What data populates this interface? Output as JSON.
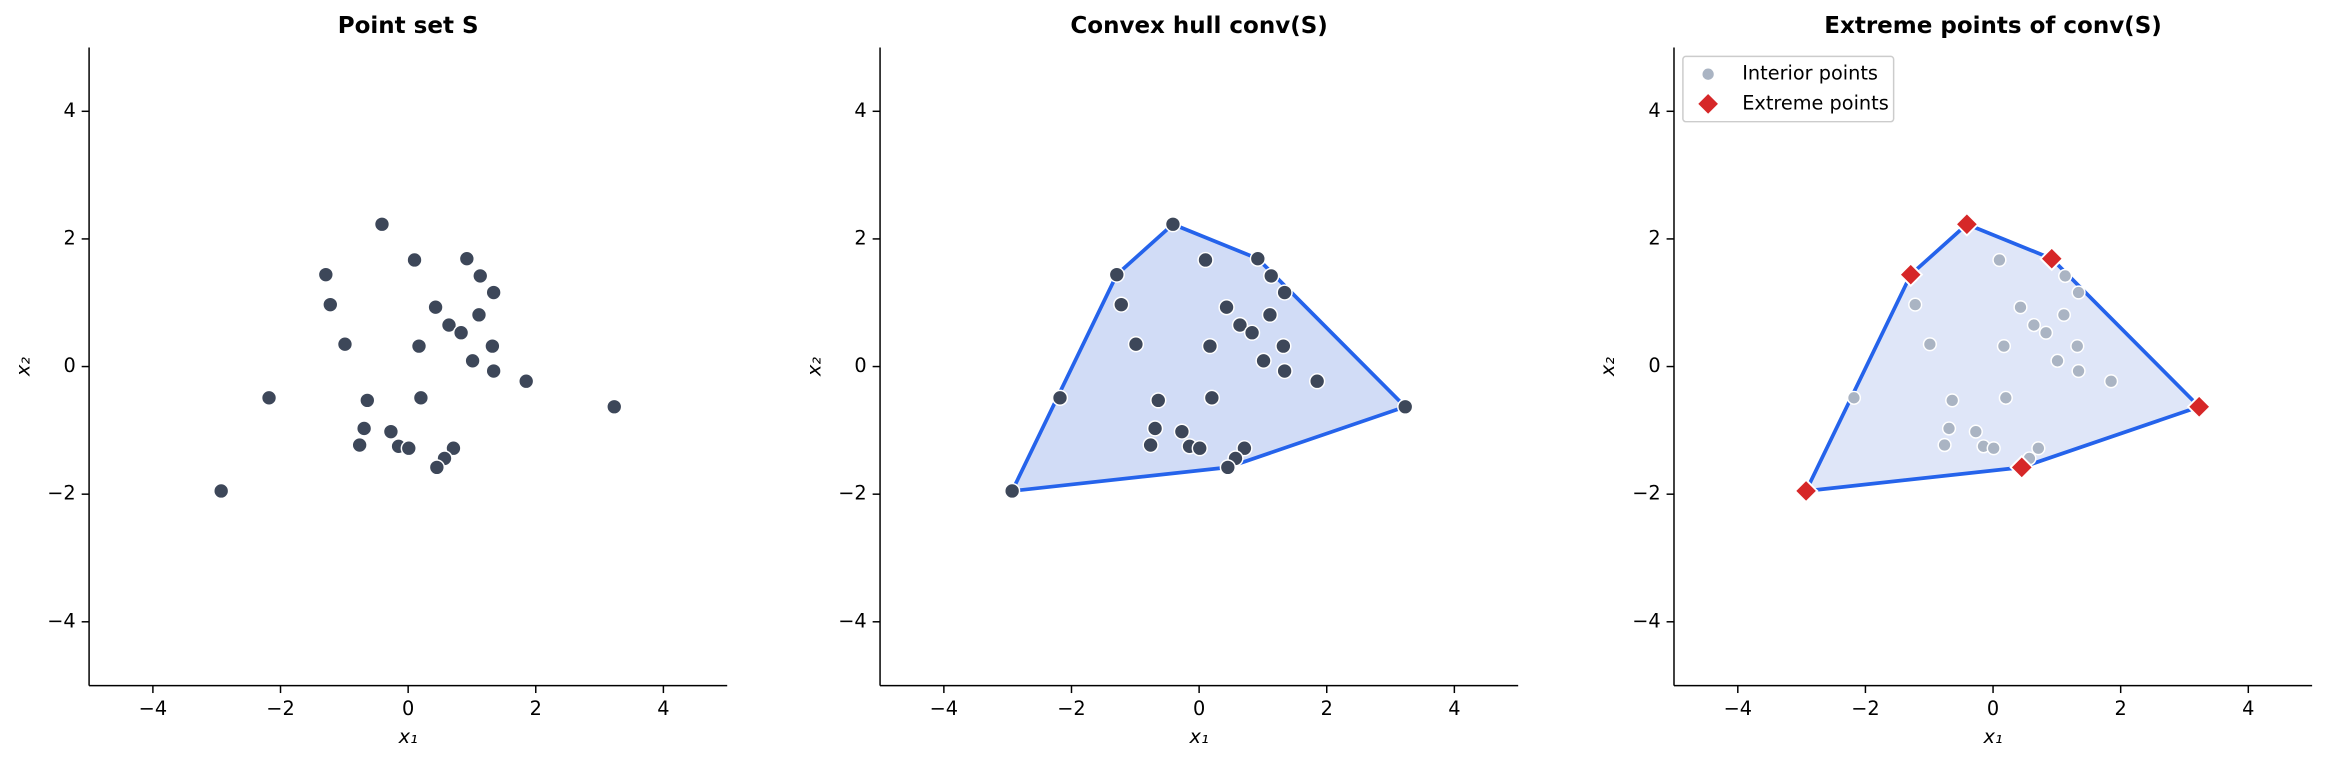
{
  "chart_data": [
    {
      "type": "scatter",
      "title": "Point set S",
      "xlabel": "x₁",
      "ylabel": "x₂",
      "xlim": [
        -5,
        5
      ],
      "ylim": [
        -5,
        5
      ],
      "xticks": [
        {
          "value": -4,
          "label": "−4"
        },
        {
          "value": -2,
          "label": "−2"
        },
        0,
        2,
        4
      ],
      "yticks": [
        {
          "value": -4,
          "label": "−4"
        },
        {
          "value": -2,
          "label": "−2"
        },
        0,
        2,
        4
      ],
      "series": [
        {
          "color": "#3d4759",
          "marker": "o",
          "x": [
            -0.41,
            -1.29,
            -1.22,
            0.1,
            0.92,
            1.13,
            1.34,
            0.43,
            1.11,
            -0.99,
            0.64,
            0.83,
            0.17,
            1.32,
            1.01,
            1.34,
            1.85,
            -2.18,
            -0.64,
            0.2,
            3.23,
            -0.69,
            -0.27,
            -0.76,
            -0.15,
            0.01,
            0.71,
            0.57,
            0.45,
            -2.93
          ],
          "values": [
            2.23,
            1.44,
            0.97,
            1.67,
            1.69,
            1.42,
            1.16,
            0.93,
            0.81,
            0.35,
            0.65,
            0.53,
            0.32,
            0.32,
            0.09,
            -0.07,
            -0.23,
            -0.49,
            -0.53,
            -0.49,
            -0.63,
            -0.97,
            -1.02,
            -1.23,
            -1.25,
            -1.28,
            -1.28,
            -1.44,
            -1.58,
            -1.95
          ]
        }
      ]
    },
    {
      "type": "scatter",
      "title": "Convex hull conv(S)",
      "xlabel": "x₁",
      "ylabel": "x₂",
      "xlim": [
        -5,
        5
      ],
      "ylim": [
        -5,
        5
      ],
      "xticks": [
        {
          "value": -4,
          "label": "−4"
        },
        {
          "value": -2,
          "label": "−2"
        },
        0,
        2,
        4
      ],
      "yticks": [
        {
          "value": -4,
          "label": "−4"
        },
        {
          "value": -2,
          "label": "−2"
        },
        0,
        2,
        4
      ],
      "hull": {
        "color": "#2563eb",
        "fill": "#d1dcf6",
        "x": [
          -2.93,
          -1.29,
          -0.41,
          0.92,
          3.23,
          0.45
        ],
        "values": [
          -1.95,
          1.44,
          2.23,
          1.69,
          -0.63,
          -1.58
        ]
      },
      "series": [
        {
          "color": "#3d4759",
          "marker": "o",
          "x": [
            -0.41,
            -1.29,
            -1.22,
            0.1,
            0.92,
            1.13,
            1.34,
            0.43,
            1.11,
            -0.99,
            0.64,
            0.83,
            0.17,
            1.32,
            1.01,
            1.34,
            1.85,
            -2.18,
            -0.64,
            0.2,
            3.23,
            -0.69,
            -0.27,
            -0.76,
            -0.15,
            0.01,
            0.71,
            0.57,
            0.45,
            -2.93
          ],
          "values": [
            2.23,
            1.44,
            0.97,
            1.67,
            1.69,
            1.42,
            1.16,
            0.93,
            0.81,
            0.35,
            0.65,
            0.53,
            0.32,
            0.32,
            0.09,
            -0.07,
            -0.23,
            -0.49,
            -0.53,
            -0.49,
            -0.63,
            -0.97,
            -1.02,
            -1.23,
            -1.25,
            -1.28,
            -1.28,
            -1.44,
            -1.58,
            -1.95
          ]
        }
      ]
    },
    {
      "type": "scatter",
      "title": "Extreme points of conv(S)",
      "xlabel": "x₁",
      "ylabel": "x₂",
      "xlim": [
        -5,
        5
      ],
      "ylim": [
        -5,
        5
      ],
      "xticks": [
        {
          "value": -4,
          "label": "−4"
        },
        {
          "value": -2,
          "label": "−2"
        },
        0,
        2,
        4
      ],
      "yticks": [
        {
          "value": -4,
          "label": "−4"
        },
        {
          "value": -2,
          "label": "−2"
        },
        0,
        2,
        4
      ],
      "legend": "upper left",
      "hull": {
        "color": "#2563eb",
        "fill": "#dfe6f8",
        "x": [
          -2.93,
          -1.29,
          -0.41,
          0.92,
          3.23,
          0.45
        ],
        "values": [
          -1.95,
          1.44,
          2.23,
          1.69,
          -0.63,
          -1.58
        ]
      },
      "series": [
        {
          "name": "Interior points",
          "color": "#aab4c3",
          "marker": "o",
          "x": [
            -1.22,
            0.1,
            1.13,
            1.34,
            0.43,
            1.11,
            -0.99,
            0.64,
            0.83,
            0.17,
            1.32,
            1.01,
            1.34,
            1.85,
            -2.18,
            -0.64,
            0.2,
            -0.69,
            -0.27,
            -0.76,
            -0.15,
            0.01,
            0.71,
            0.57
          ],
          "values": [
            0.97,
            1.67,
            1.42,
            1.16,
            0.93,
            0.81,
            0.35,
            0.65,
            0.53,
            0.32,
            0.32,
            0.09,
            -0.07,
            -0.23,
            -0.49,
            -0.53,
            -0.49,
            -0.97,
            -1.02,
            -1.23,
            -1.25,
            -1.28,
            -1.28,
            -1.44
          ]
        },
        {
          "name": "Extreme points",
          "color": "#d62728",
          "marker": "D",
          "x": [
            -2.93,
            -1.29,
            -0.41,
            0.92,
            3.23,
            0.45
          ],
          "values": [
            -1.95,
            1.44,
            2.23,
            1.69,
            -0.63,
            -1.58
          ]
        }
      ]
    }
  ]
}
